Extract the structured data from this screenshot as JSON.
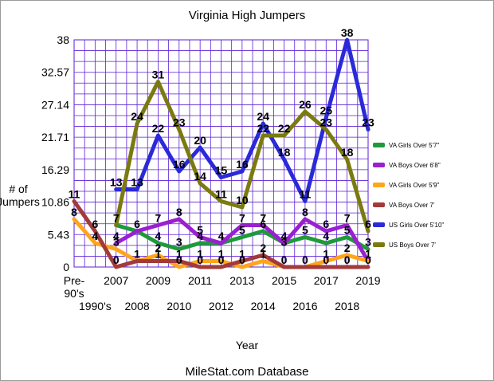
{
  "chart_data": {
    "type": "line",
    "title": "Virginia High Jumpers",
    "xlabel": "Year",
    "ylabel": "# of\nJumpers",
    "footer": "MileStat.com Database",
    "categories": [
      "Pre-90's",
      "1990's",
      "2007",
      "2008",
      "2009",
      "2010",
      "2011",
      "2012",
      "2013",
      "2014",
      "2015",
      "2016",
      "2017",
      "2018",
      "2019"
    ],
    "x_tick_labels_upper": [
      "Pre-\n90's",
      "2007",
      "2009",
      "2011",
      "2013",
      "2015",
      "2017",
      "2019"
    ],
    "x_tick_labels_lower": [
      "1990's",
      "2008",
      "2010",
      "2012",
      "2014",
      "2016",
      "2018"
    ],
    "y_ticks": [
      "0",
      "5.43",
      "10.86",
      "16.29",
      "21.71",
      "27.14",
      "32.57",
      "38"
    ],
    "ylim": [
      0,
      38
    ],
    "grid": true,
    "legend_position": "right",
    "series": [
      {
        "name": "VA Girls Over 5'7\"",
        "color": "#1f9a3a",
        "values": [
          null,
          null,
          7,
          6,
          4,
          3,
          4,
          4,
          5,
          6,
          4,
          5,
          4,
          5,
          3
        ]
      },
      {
        "name": "VA Boys Over 6'8\"",
        "color": "#9a1fd0",
        "values": [
          null,
          null,
          4,
          6,
          7,
          8,
          5,
          4,
          7,
          7,
          4,
          8,
          6,
          7,
          1
        ]
      },
      {
        "name": "VA Girls Over 5'9\"",
        "color": "#ffa51a",
        "values": [
          8,
          4,
          3,
          1,
          2,
          0,
          1,
          1,
          0,
          1,
          0,
          0,
          1,
          2,
          1
        ]
      },
      {
        "name": "VA Boys Over 7'",
        "color": "#a23a3a",
        "values": [
          11,
          6,
          0,
          1,
          1,
          1,
          0,
          0,
          1,
          2,
          0,
          0,
          0,
          0,
          0
        ]
      },
      {
        "name": "US Girls Over 5'10\"",
        "color": "#2a2ad8",
        "values": [
          null,
          null,
          13,
          13,
          22,
          16,
          20,
          15,
          16,
          24,
          18,
          11,
          25,
          38,
          23
        ]
      },
      {
        "name": "US Boys Over 7'",
        "color": "#7a7a10",
        "values": [
          null,
          null,
          7,
          24,
          31,
          23,
          14,
          11,
          10,
          22,
          22,
          26,
          23,
          18,
          6
        ]
      }
    ],
    "point_labels": [
      {
        "x": 0,
        "y": 11,
        "text": "11"
      },
      {
        "x": 0,
        "y": 8,
        "text": "8"
      },
      {
        "x": 1,
        "y": 6,
        "text": "6"
      },
      {
        "x": 1,
        "y": 4,
        "text": "4"
      },
      {
        "x": 2,
        "y": 13,
        "text": "13"
      },
      {
        "x": 2,
        "y": 7,
        "text": "7"
      },
      {
        "x": 2,
        "y": 4,
        "text": "4"
      },
      {
        "x": 2,
        "y": 3,
        "text": "3"
      },
      {
        "x": 2,
        "y": 0,
        "text": "0"
      },
      {
        "x": 3,
        "y": 24,
        "text": "24"
      },
      {
        "x": 3,
        "y": 13,
        "text": "13"
      },
      {
        "x": 3,
        "y": 6,
        "text": "6"
      },
      {
        "x": 3,
        "y": 1,
        "text": "1"
      },
      {
        "x": 4,
        "y": 31,
        "text": "31"
      },
      {
        "x": 4,
        "y": 22,
        "text": "22"
      },
      {
        "x": 4,
        "y": 7,
        "text": "7"
      },
      {
        "x": 4,
        "y": 4,
        "text": "4"
      },
      {
        "x": 4,
        "y": 2,
        "text": "2"
      },
      {
        "x": 4,
        "y": 1,
        "text": "1"
      },
      {
        "x": 5,
        "y": 23,
        "text": "23"
      },
      {
        "x": 5,
        "y": 16,
        "text": "16"
      },
      {
        "x": 5,
        "y": 8,
        "text": "8"
      },
      {
        "x": 5,
        "y": 3,
        "text": "3"
      },
      {
        "x": 5,
        "y": 1,
        "text": "1"
      },
      {
        "x": 5,
        "y": 0,
        "text": "0"
      },
      {
        "x": 6,
        "y": 20,
        "text": "20"
      },
      {
        "x": 6,
        "y": 14,
        "text": "14"
      },
      {
        "x": 6,
        "y": 5,
        "text": "5"
      },
      {
        "x": 6,
        "y": 4,
        "text": "4"
      },
      {
        "x": 6,
        "y": 1,
        "text": "1"
      },
      {
        "x": 6,
        "y": 0,
        "text": "0"
      },
      {
        "x": 7,
        "y": 15,
        "text": "15"
      },
      {
        "x": 7,
        "y": 11,
        "text": "11"
      },
      {
        "x": 7,
        "y": 4,
        "text": "4"
      },
      {
        "x": 7,
        "y": 1,
        "text": "1"
      },
      {
        "x": 7,
        "y": 0,
        "text": "0"
      },
      {
        "x": 8,
        "y": 16,
        "text": "16"
      },
      {
        "x": 8,
        "y": 10,
        "text": "10"
      },
      {
        "x": 8,
        "y": 7,
        "text": "7"
      },
      {
        "x": 8,
        "y": 5,
        "text": "5"
      },
      {
        "x": 8,
        "y": 1,
        "text": "1"
      },
      {
        "x": 8,
        "y": 0,
        "text": "0"
      },
      {
        "x": 9,
        "y": 24,
        "text": "24"
      },
      {
        "x": 9,
        "y": 22,
        "text": "22"
      },
      {
        "x": 9,
        "y": 7,
        "text": "7"
      },
      {
        "x": 9,
        "y": 6,
        "text": "6"
      },
      {
        "x": 9,
        "y": 2,
        "text": "2"
      },
      {
        "x": 9,
        "y": 1,
        "text": "1"
      },
      {
        "x": 10,
        "y": 22,
        "text": "22"
      },
      {
        "x": 10,
        "y": 18,
        "text": "18"
      },
      {
        "x": 10,
        "y": 4,
        "text": "4"
      },
      {
        "x": 10,
        "y": 3,
        "text": "3"
      },
      {
        "x": 10,
        "y": 0,
        "text": "0"
      },
      {
        "x": 11,
        "y": 26,
        "text": "26"
      },
      {
        "x": 11,
        "y": 11,
        "text": "11"
      },
      {
        "x": 11,
        "y": 8,
        "text": "8"
      },
      {
        "x": 11,
        "y": 5,
        "text": "5"
      },
      {
        "x": 11,
        "y": 0,
        "text": "0"
      },
      {
        "x": 12,
        "y": 25,
        "text": "25"
      },
      {
        "x": 12,
        "y": 23,
        "text": "23"
      },
      {
        "x": 12,
        "y": 6,
        "text": "6"
      },
      {
        "x": 12,
        "y": 4,
        "text": "4"
      },
      {
        "x": 12,
        "y": 1,
        "text": "1"
      },
      {
        "x": 12,
        "y": 0,
        "text": "0"
      },
      {
        "x": 13,
        "y": 38,
        "text": "38"
      },
      {
        "x": 13,
        "y": 18,
        "text": "18"
      },
      {
        "x": 13,
        "y": 7,
        "text": "7"
      },
      {
        "x": 13,
        "y": 5,
        "text": "5"
      },
      {
        "x": 13,
        "y": 2,
        "text": "2"
      },
      {
        "x": 13,
        "y": 0,
        "text": "0"
      },
      {
        "x": 14,
        "y": 23,
        "text": "23"
      },
      {
        "x": 14,
        "y": 6,
        "text": "6"
      },
      {
        "x": 14,
        "y": 3,
        "text": "3"
      },
      {
        "x": 14,
        "y": 1,
        "text": "1"
      },
      {
        "x": 14,
        "y": 0,
        "text": "0"
      }
    ]
  }
}
